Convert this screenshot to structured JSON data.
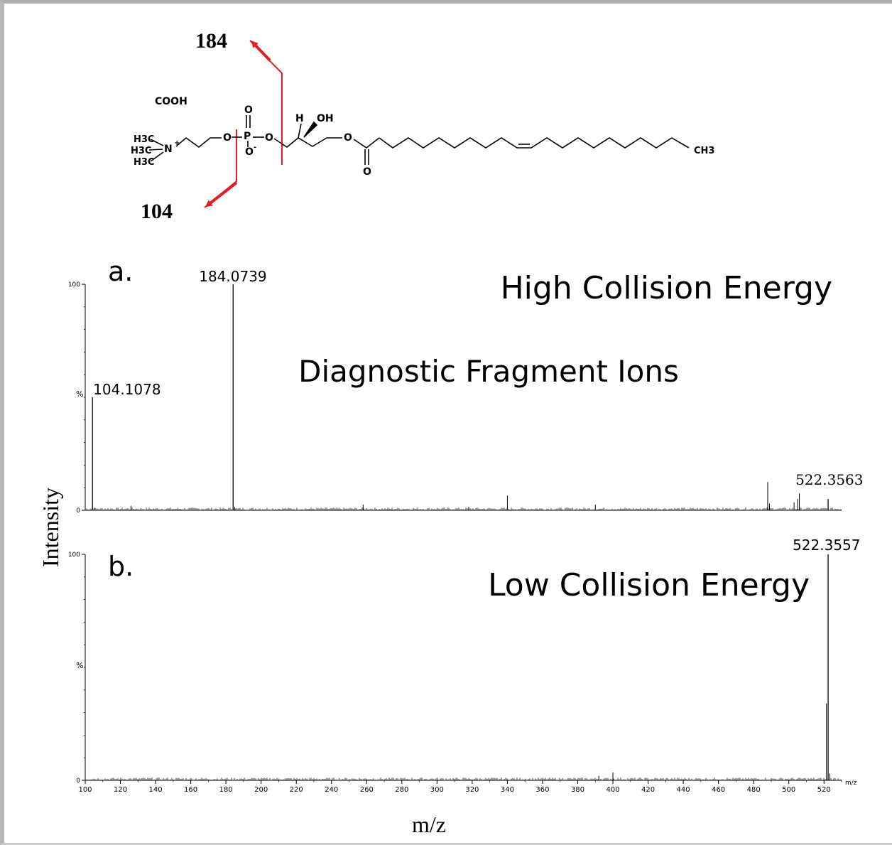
{
  "structure": {
    "fragment_high": "184",
    "fragment_low": "104",
    "groups": {
      "cooh": "COOH",
      "h3c_a": "H3C",
      "h3c_b": "H3C",
      "h3c_c": "H3C",
      "nitrogen": "N",
      "oxygen_ester_left": "O",
      "phosphorus": "P",
      "oxygen_top": "O",
      "oxygen_minus": "O",
      "oxygen_ester_right": "O",
      "hydrogen": "H",
      "hydroxyl": "OH",
      "oxygen_glycerol": "O",
      "oxygen_carbonyl": "O",
      "methyl_end": "CH3"
    },
    "colors": {
      "arrow": "#e02020",
      "cleavage": "#e02020"
    }
  },
  "chart_data": [
    {
      "type": "bar",
      "panel_label": "a.",
      "title": "High Collision Energy",
      "annotation": "Diagnostic Fragment Ions",
      "xlim": [
        100,
        530
      ],
      "ylim": [
        0,
        100
      ],
      "y_ticks": [
        0,
        100
      ],
      "ylabel": "%",
      "x_ticks_visible": false,
      "peaks": [
        {
          "x": 104.1078,
          "y": 50,
          "label": "104.1078"
        },
        {
          "x": 184.0739,
          "y": 100,
          "label": "184.0739"
        },
        {
          "x": 522.3563,
          "y": 5,
          "label": "522.3563"
        }
      ],
      "minor_peaks": [
        {
          "x": 105,
          "y": 1
        },
        {
          "x": 126,
          "y": 2
        },
        {
          "x": 185,
          "y": 1.5
        },
        {
          "x": 258,
          "y": 2.5
        },
        {
          "x": 318,
          "y": 1.5
        },
        {
          "x": 340,
          "y": 6.5
        },
        {
          "x": 390,
          "y": 2.5
        },
        {
          "x": 488,
          "y": 12.5
        },
        {
          "x": 489,
          "y": 3
        },
        {
          "x": 503,
          "y": 3.5
        },
        {
          "x": 505,
          "y": 5
        },
        {
          "x": 506,
          "y": 7.5
        }
      ]
    },
    {
      "type": "bar",
      "panel_label": "b.",
      "title": "Low Collision Energy",
      "xlim": [
        100,
        530
      ],
      "ylim": [
        0,
        100
      ],
      "y_ticks": [
        0,
        100
      ],
      "ylabel": "%",
      "x_ticks": [
        100,
        120,
        140,
        160,
        180,
        200,
        220,
        240,
        260,
        280,
        300,
        320,
        340,
        360,
        380,
        400,
        420,
        440,
        460,
        480,
        500,
        520
      ],
      "x_tick_labels": [
        "100",
        "120",
        "140",
        "160",
        "180",
        "200",
        "220",
        "240",
        "260",
        "280",
        "300",
        "320",
        "340",
        "360",
        "380",
        "400",
        "420",
        "440",
        "460",
        "480",
        "500",
        "520"
      ],
      "x_unit_label": "m/z",
      "peaks": [
        {
          "x": 522.3557,
          "y": 100,
          "label": "522.3557"
        }
      ],
      "minor_peaks": [
        {
          "x": 521.4,
          "y": 34
        },
        {
          "x": 523.3,
          "y": 3
        },
        {
          "x": 392,
          "y": 2
        },
        {
          "x": 400,
          "y": 3.5
        }
      ]
    }
  ],
  "axes": {
    "ylabel": "Intensity",
    "xlabel": "m/z"
  }
}
